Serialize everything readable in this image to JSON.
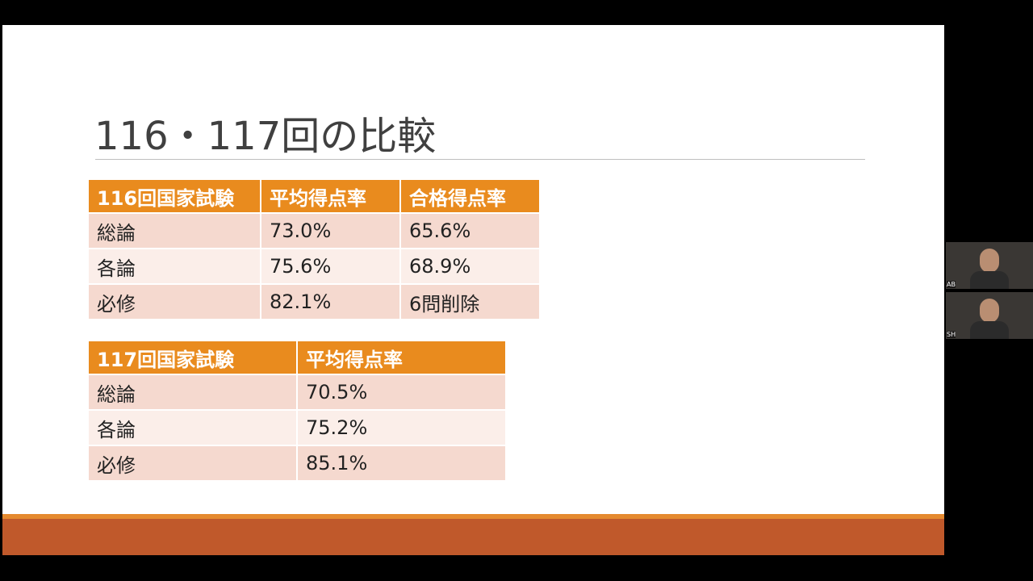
{
  "slide": {
    "title": "116・117回の比較",
    "tables": [
      {
        "header": [
          "116回国家試験",
          "平均得点率",
          "合格得点率"
        ],
        "rows": [
          [
            "総論",
            "73.0%",
            "65.6%"
          ],
          [
            "各論",
            "75.6%",
            "68.9%"
          ],
          [
            "必修",
            "82.1%",
            "6問削除"
          ]
        ]
      },
      {
        "header": [
          "117回国家試験",
          "平均得点率"
        ],
        "rows": [
          [
            "総論",
            "70.5%"
          ],
          [
            "各論",
            "75.2%"
          ],
          [
            "必修",
            "85.1%"
          ]
        ]
      }
    ]
  },
  "participants": [
    {
      "label": "AB"
    },
    {
      "label": "SH"
    }
  ]
}
